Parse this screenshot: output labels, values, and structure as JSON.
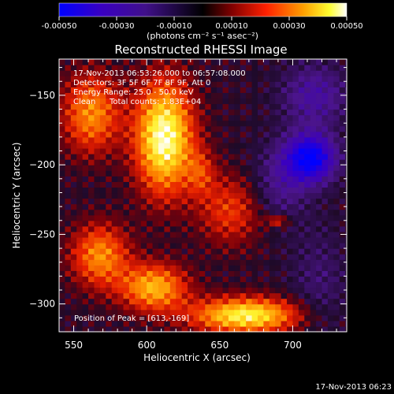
{
  "chart_data": {
    "type": "heatmap",
    "title": "Reconstructed RHESSI Image",
    "xlabel": "Heliocentric X (arcsec)",
    "ylabel": "Heliocentric Y (arcsec)",
    "xlim": [
      540,
      737
    ],
    "ylim": [
      -320,
      -124
    ],
    "x_ticks": [
      550,
      600,
      650,
      700
    ],
    "y_ticks": [
      -150,
      -200,
      -250,
      -300
    ],
    "colorbar": {
      "min": -0.0005,
      "max": 0.0005,
      "ticks": [
        -0.0005,
        -0.0003,
        -0.0001,
        0.0001,
        0.0003,
        0.0005
      ],
      "tick_labels": [
        "-0.00050",
        "-0.00030",
        "-0.00010",
        "0.00010",
        "0.00030",
        "0.00050"
      ],
      "unit_label": "(photons cm⁻² s⁻¹ asec⁻²)",
      "colormap": [
        "#0000ff",
        "#4b0082",
        "#000000",
        "#8b0000",
        "#ff4500",
        "#ffa500",
        "#ffff00",
        "#ffffff"
      ]
    },
    "annotations": {
      "time_range": "17-Nov-2013 06:53:26.000 to 06:57:08.000",
      "detectors": "Detectors: 3F 5F 6F 7F 8F 9F, Att 0",
      "energy_range": "Energy Range: 25.0 - 50.0 keV",
      "clean_label": "Clean",
      "total_counts": "Total counts: 1.83E+04",
      "peak_position": "Position of Peak = [613,-169]"
    },
    "peak": {
      "x": 613,
      "y": -169
    },
    "bright_regions": [
      {
        "x": 612,
        "y": -180,
        "level": 0.0005,
        "sx": 14,
        "sy": 28
      },
      {
        "x": 562,
        "y": -163,
        "level": 0.0003,
        "sx": 14,
        "sy": 20
      },
      {
        "x": 568,
        "y": -265,
        "level": 0.0003,
        "sx": 14,
        "sy": 16
      },
      {
        "x": 605,
        "y": -288,
        "level": 0.00035,
        "sx": 16,
        "sy": 12
      },
      {
        "x": 668,
        "y": -308,
        "level": 0.00045,
        "sx": 26,
        "sy": 9
      },
      {
        "x": 658,
        "y": -232,
        "level": 0.0002,
        "sx": 16,
        "sy": 18
      },
      {
        "x": 690,
        "y": -240,
        "level": 0.0002,
        "sx": 6,
        "sy": 3
      },
      {
        "x": 637,
        "y": -205,
        "level": 0.00015,
        "sx": 7,
        "sy": 12
      }
    ],
    "dim_regions": [
      {
        "x": 712,
        "y": -195,
        "level": -0.0005,
        "sx": 12,
        "sy": 12
      },
      {
        "x": 715,
        "y": -150,
        "level": -0.0002,
        "sx": 16,
        "sy": 16
      },
      {
        "x": 690,
        "y": -215,
        "level": -0.00015,
        "sx": 14,
        "sy": 20
      },
      {
        "x": 718,
        "y": -285,
        "level": -0.0001,
        "sx": 14,
        "sy": 30
      }
    ]
  },
  "footer_timestamp": "17-Nov-2013 06:23"
}
